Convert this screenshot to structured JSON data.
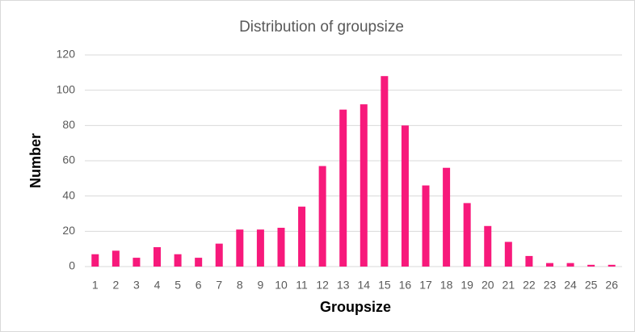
{
  "chart_data": {
    "type": "bar",
    "title": "Distribution of groupsize",
    "x_label": "Groupsize",
    "y_label": "Number",
    "categories": [
      "1",
      "2",
      "3",
      "4",
      "5",
      "6",
      "7",
      "8",
      "9",
      "10",
      "11",
      "12",
      "13",
      "14",
      "15",
      "16",
      "17",
      "18",
      "19",
      "20",
      "21",
      "22",
      "23",
      "24",
      "25",
      "26"
    ],
    "values": [
      7,
      9,
      5,
      11,
      7,
      5,
      13,
      21,
      21,
      22,
      34,
      57,
      89,
      92,
      108,
      80,
      46,
      56,
      36,
      23,
      14,
      6,
      2,
      2,
      1,
      1
    ],
    "color": "#f7197b",
    "ylim": [
      0,
      120
    ],
    "yticks": [
      0,
      20,
      40,
      60,
      80,
      100,
      120
    ],
    "grid": true
  }
}
